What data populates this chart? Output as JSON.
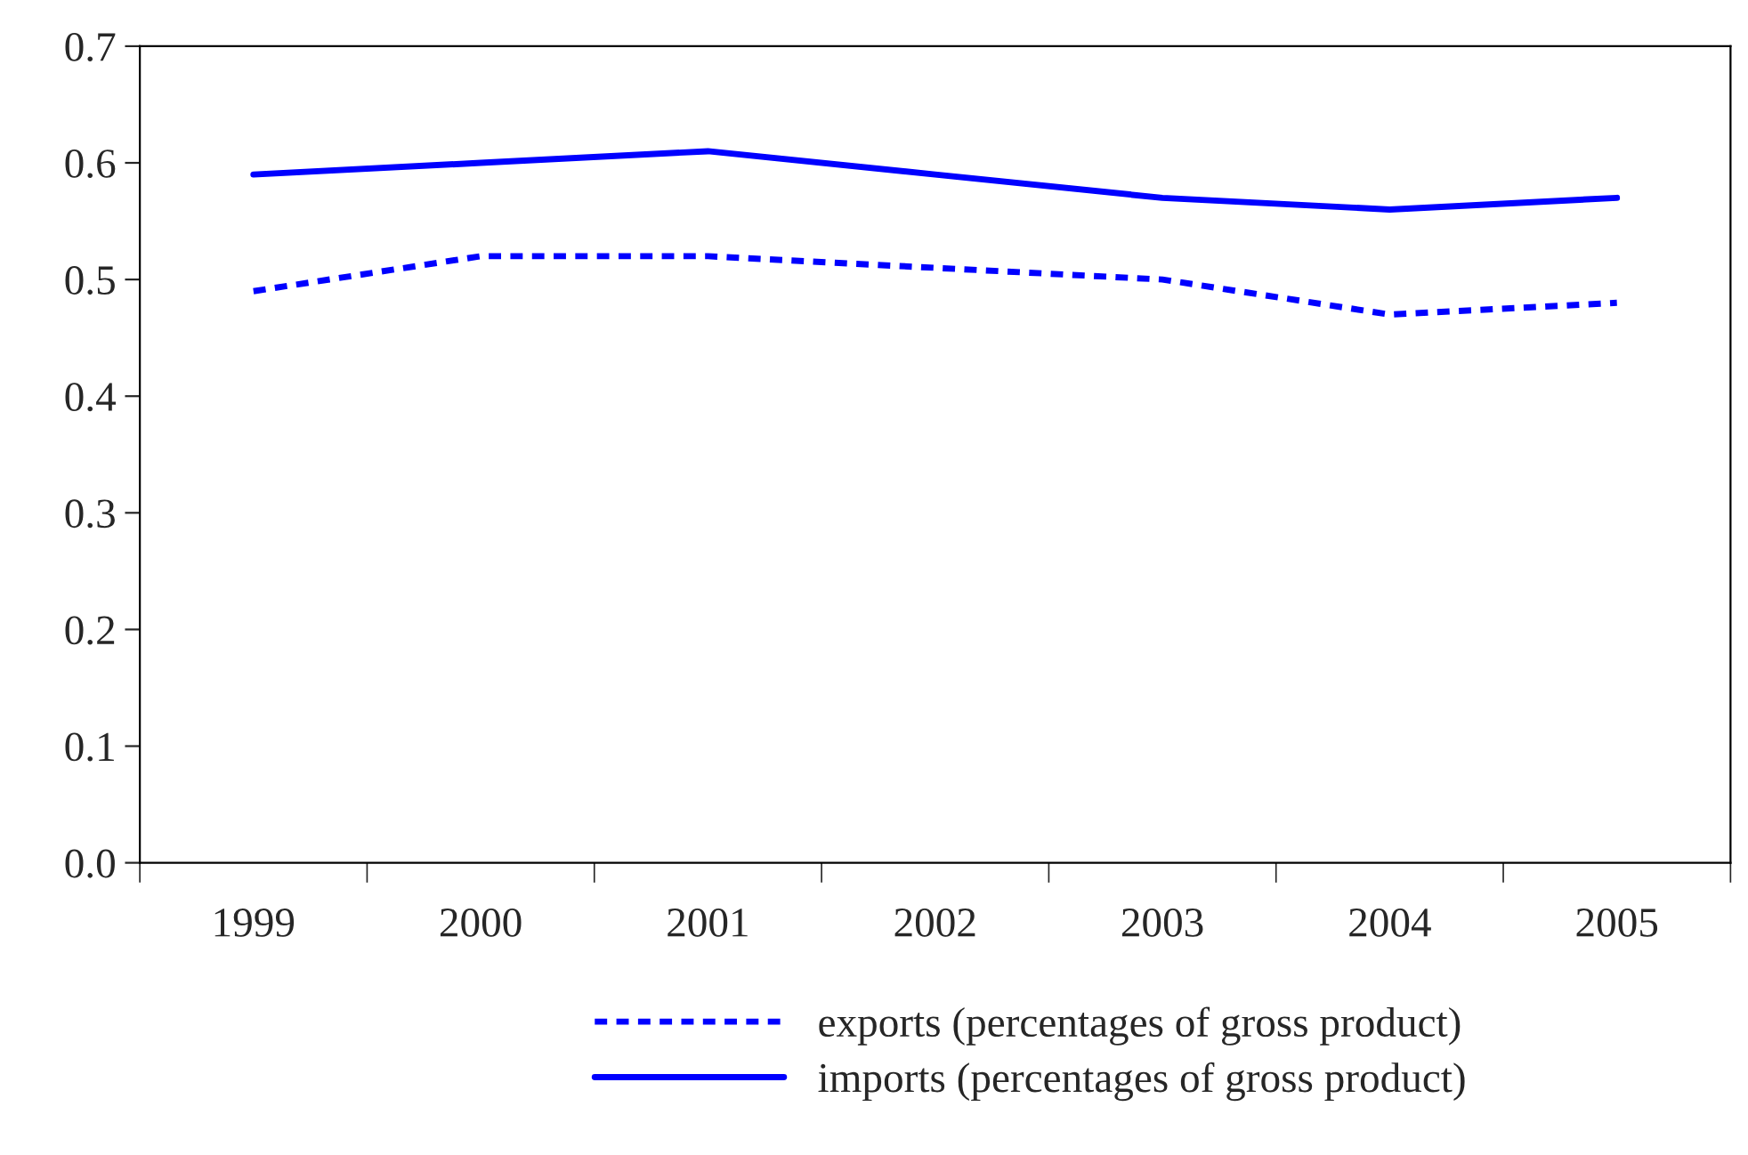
{
  "chart_data": {
    "type": "line",
    "categories": [
      "1999",
      "2000",
      "2001",
      "2002",
      "2003",
      "2004",
      "2005"
    ],
    "series": [
      {
        "name": "exports (percentages of gross product)",
        "color": "#0000ff",
        "line_style": "dashed",
        "values": [
          0.49,
          0.52,
          0.52,
          0.51,
          0.5,
          0.47,
          0.48
        ]
      },
      {
        "name": "imports (percentages of gross product)",
        "color": "#0000ff",
        "line_style": "solid",
        "values": [
          0.59,
          0.6,
          0.61,
          0.59,
          0.57,
          0.56,
          0.57
        ]
      }
    ],
    "ylim": [
      0,
      0.7
    ],
    "yticks": [
      {
        "value": 0,
        "label": "0.0"
      },
      {
        "value": 0.1,
        "label": "0.1"
      },
      {
        "value": 0.2,
        "label": "0.2"
      },
      {
        "value": 0.3,
        "label": "0.3"
      },
      {
        "value": 0.4,
        "label": "0.4"
      },
      {
        "value": 0.5,
        "label": "0.5"
      },
      {
        "value": 0.6,
        "label": "0.6"
      },
      {
        "value": 0.7,
        "label": "0.7"
      }
    ],
    "grid": false,
    "legend": "bottom",
    "marker": "none"
  }
}
